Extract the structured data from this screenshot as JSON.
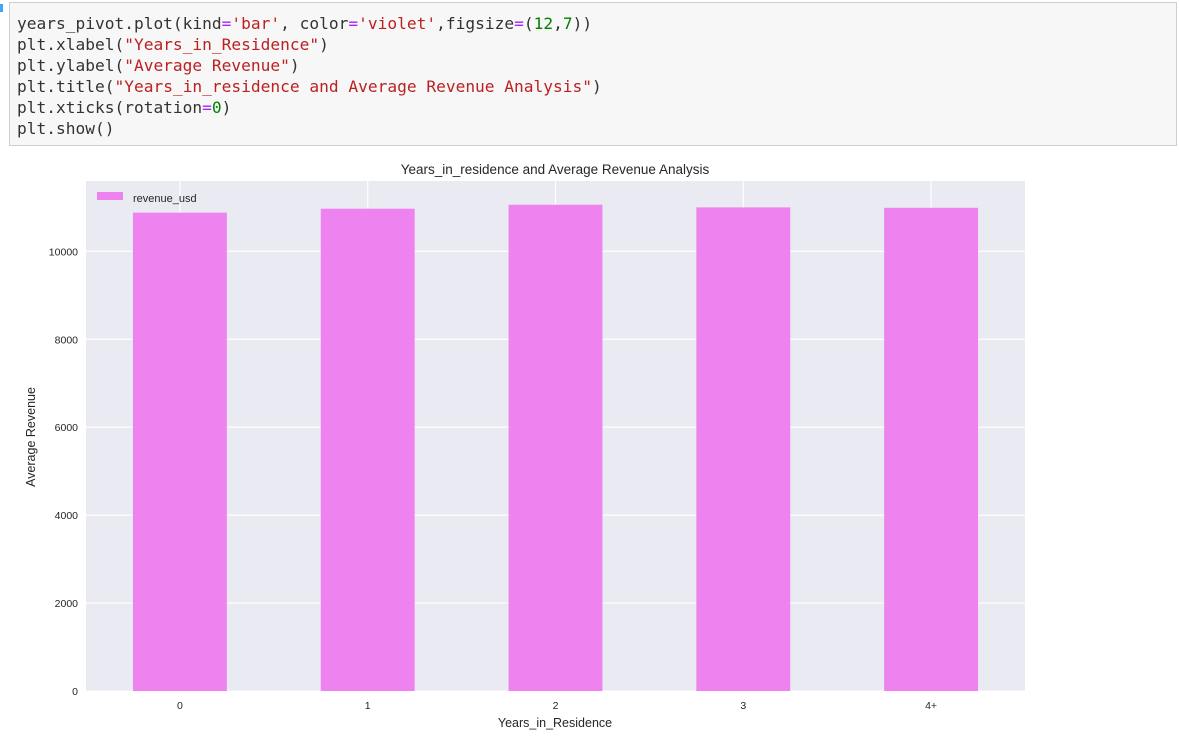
{
  "code_cell": {
    "lines": [
      [
        {
          "t": "years_pivot.plot(kind"
        },
        {
          "t": "=",
          "c": "op"
        },
        {
          "t": "'bar'",
          "c": "str"
        },
        {
          "t": ", color"
        },
        {
          "t": "=",
          "c": "op"
        },
        {
          "t": "'violet'",
          "c": "str"
        },
        {
          "t": ",figsize"
        },
        {
          "t": "=",
          "c": "op"
        },
        {
          "t": "("
        },
        {
          "t": "12",
          "c": "num"
        },
        {
          "t": ","
        },
        {
          "t": "7",
          "c": "num"
        },
        {
          "t": "))"
        }
      ],
      [
        {
          "t": "plt.xlabel("
        },
        {
          "t": "\"Years_in_Residence\"",
          "c": "str"
        },
        {
          "t": ")"
        }
      ],
      [
        {
          "t": "plt.ylabel("
        },
        {
          "t": "\"Average Revenue\"",
          "c": "str"
        },
        {
          "t": ")"
        }
      ],
      [
        {
          "t": "plt.title("
        },
        {
          "t": "\"Years_in_residence and Average Revenue Analysis\"",
          "c": "str"
        },
        {
          "t": ")"
        }
      ],
      [
        {
          "t": "plt.xticks(rotation"
        },
        {
          "t": "=",
          "c": "op"
        },
        {
          "t": "0",
          "c": "num"
        },
        {
          "t": ")"
        }
      ],
      [
        {
          "t": "plt.show()"
        }
      ]
    ]
  },
  "colors": {
    "bar": "#ee82ee",
    "plot_background": "#eaeaf2",
    "grid": "#ffffff",
    "text": "#262626"
  },
  "chart_data": {
    "type": "bar",
    "title": "Years_in_residence and Average Revenue Analysis",
    "xlabel": "Years_in_Residence",
    "ylabel": "Average Revenue",
    "categories": [
      "0",
      "1",
      "2",
      "3",
      "4+"
    ],
    "series": [
      {
        "name": "revenue_usd",
        "values": [
          10880,
          10970,
          11060,
          11000,
          10990
        ]
      }
    ],
    "yticks": [
      0,
      2000,
      4000,
      6000,
      8000,
      10000
    ],
    "ylim": [
      0,
      11600
    ],
    "grid": true,
    "legend_position": "top-left"
  }
}
